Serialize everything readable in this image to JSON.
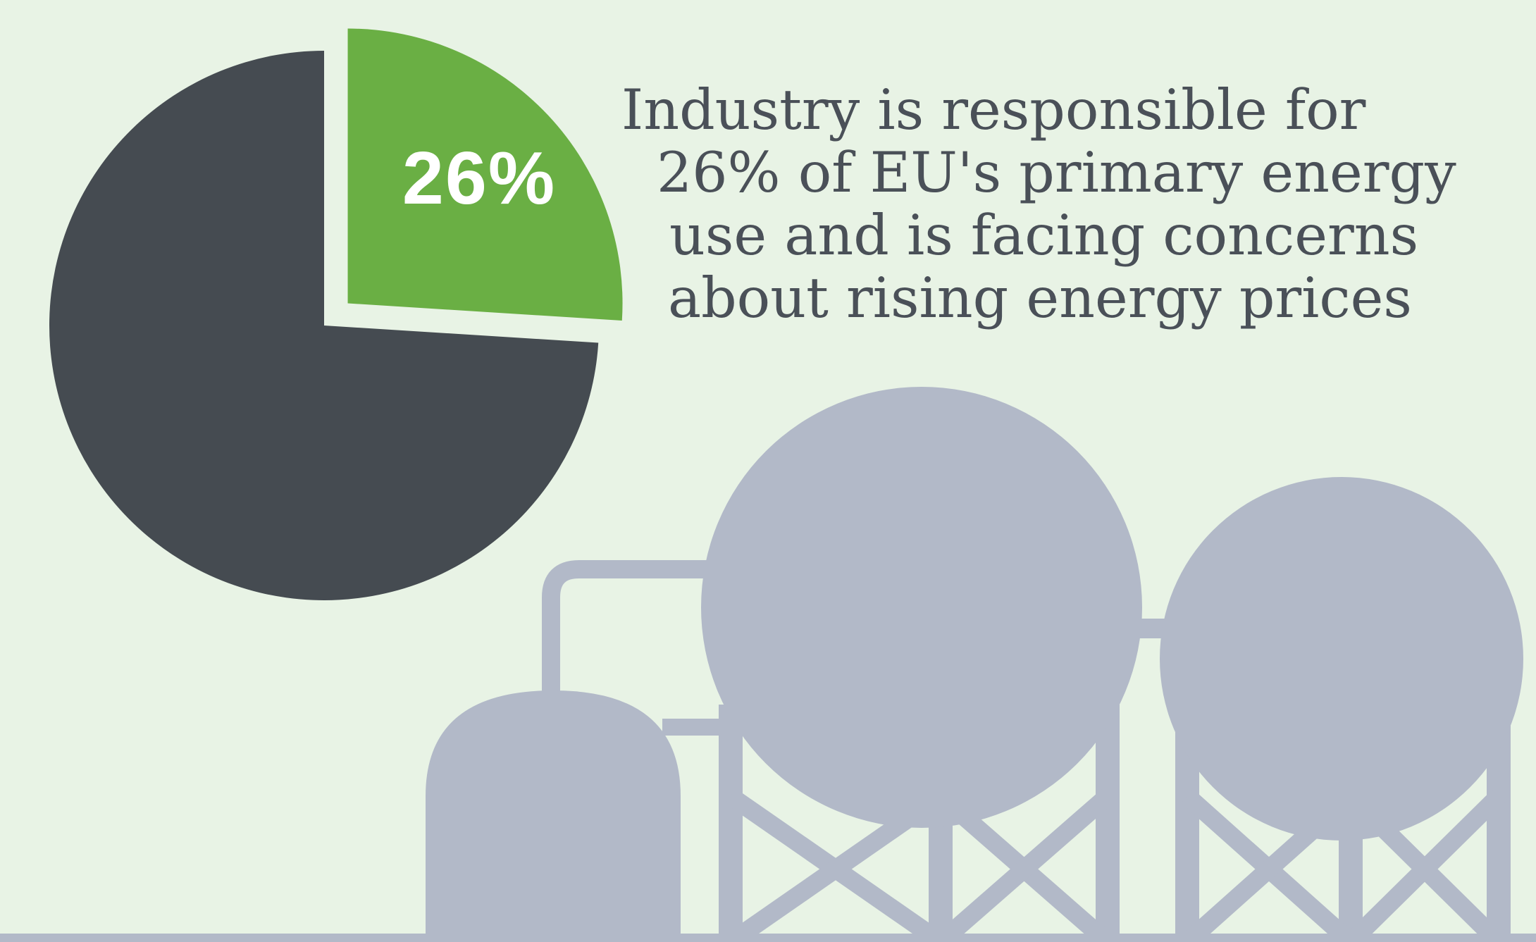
{
  "chart_data": {
    "type": "pie",
    "slices": [
      {
        "value": 26,
        "color": "#6aaf44"
      },
      {
        "value": 74,
        "color": "#454b51"
      }
    ],
    "data_label": "26%",
    "annotation_lines": [
      "Industry is responsible for",
      "26% of EU's primary energy",
      "use and is facing concerns",
      "about rising energy prices"
    ]
  },
  "illustration": {
    "icon": "industrial-storage-tanks-icon",
    "color": "#b2b9c8",
    "ground_color": "#b2b9c8"
  },
  "colors": {
    "background": "#e8f3e5",
    "text": "#4a5058",
    "highlight": "#6aaf44",
    "remainder": "#454b51"
  }
}
